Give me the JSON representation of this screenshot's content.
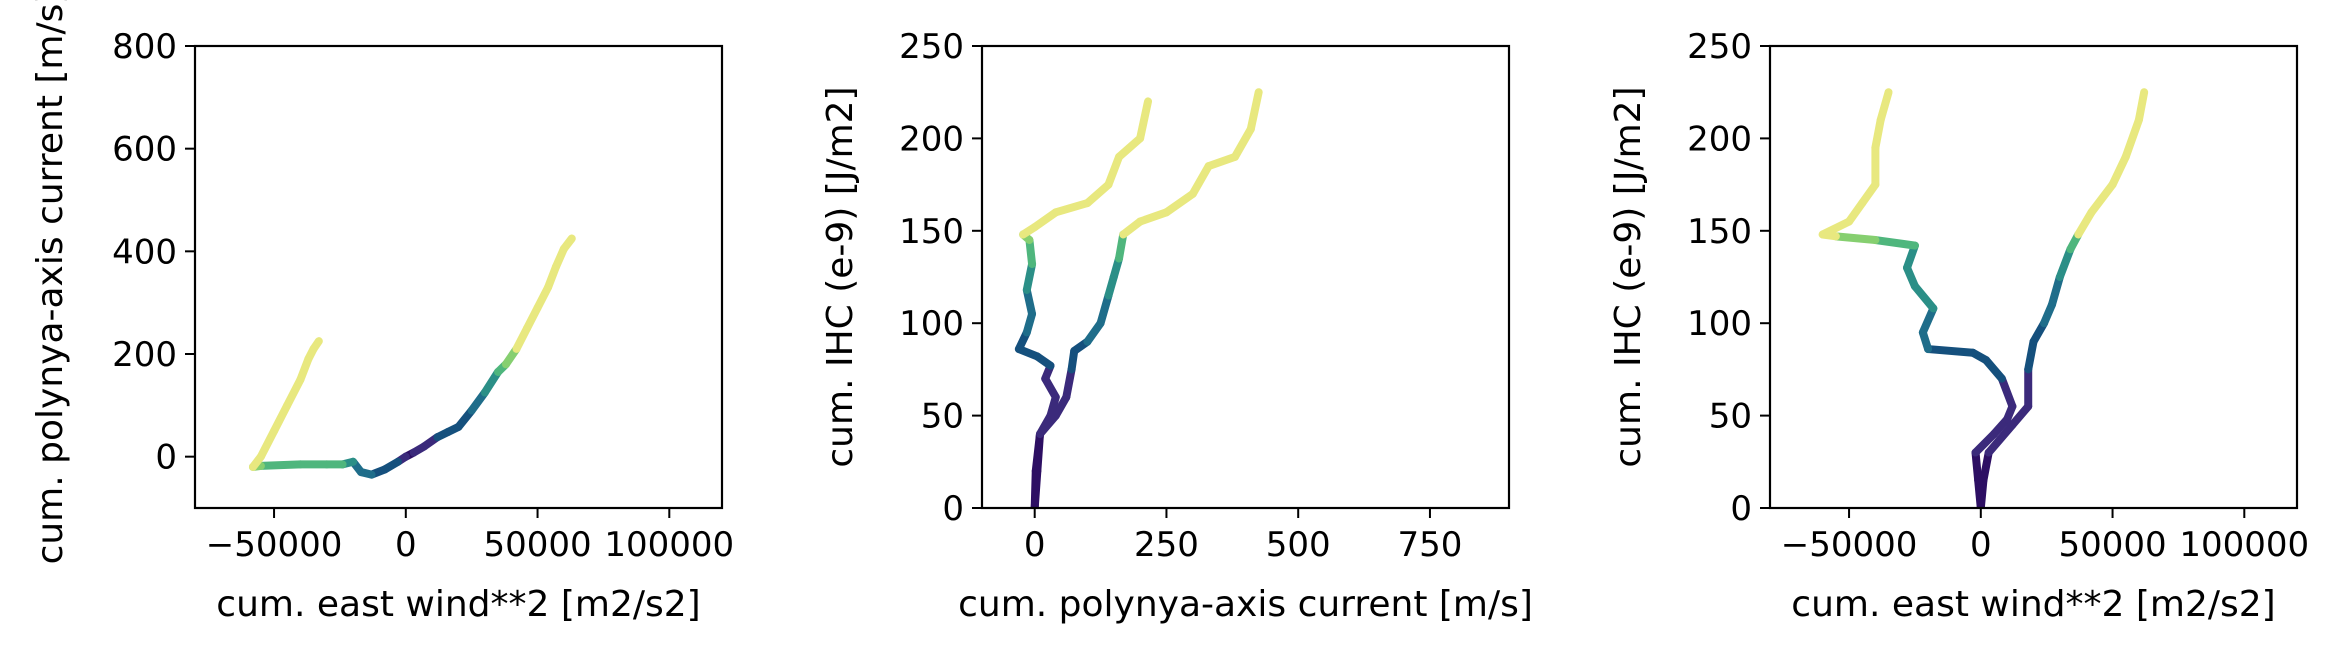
{
  "palette": [
    "#2d0f63",
    "#3b2a7b",
    "#15507d",
    "#1f6d8a",
    "#2b8f87",
    "#4fb67d",
    "#86cf70",
    "#e8e87f"
  ],
  "chart_data": [
    {
      "type": "line",
      "xlabel": "cum. east wind**2 [m2/s2]",
      "ylabel": "cum. polynya-axis current [m/s]",
      "xlim": [
        -80000,
        120000
      ],
      "ylim": [
        -100,
        800
      ],
      "xticks": [
        -50000,
        0,
        50000,
        100000
      ],
      "xtick_labels": [
        "−50000",
        "0",
        "50000",
        "100000"
      ],
      "yticks": [
        0,
        200,
        400,
        600,
        800
      ],
      "ytick_labels": [
        "0",
        "200",
        "400",
        "600",
        "800"
      ],
      "series": [
        {
          "points": [
            [
              0,
              0
            ],
            [
              3000,
              8
            ],
            [
              7000,
              20
            ],
            [
              12000,
              38
            ],
            [
              16000,
              48
            ],
            [
              20000,
              58
            ],
            [
              25000,
              90
            ],
            [
              30000,
              125
            ],
            [
              35000,
              165
            ],
            [
              38000,
              180
            ],
            [
              42000,
              210
            ],
            [
              46000,
              250
            ],
            [
              50000,
              290
            ],
            [
              54000,
              330
            ],
            [
              57000,
              370
            ],
            [
              60000,
              405
            ],
            [
              63000,
              425
            ]
          ],
          "color_index": [
            0,
            0,
            1,
            1,
            2,
            2,
            2,
            3,
            4,
            5,
            6,
            7,
            7,
            7,
            7,
            7,
            7
          ]
        },
        {
          "points": [
            [
              0,
              0
            ],
            [
              -3000,
              -10
            ],
            [
              -8000,
              -25
            ],
            [
              -13000,
              -35
            ],
            [
              -17000,
              -30
            ],
            [
              -20000,
              -10
            ],
            [
              -24000,
              -15
            ],
            [
              -30000,
              -15
            ],
            [
              -40000,
              -15
            ],
            [
              -55000,
              -18
            ],
            [
              -58000,
              -20
            ],
            [
              -55000,
              0
            ],
            [
              -50000,
              50
            ],
            [
              -45000,
              100
            ],
            [
              -40000,
              150
            ],
            [
              -37000,
              190
            ],
            [
              -35000,
              210
            ],
            [
              -33000,
              225
            ]
          ],
          "color_index": [
            0,
            1,
            2,
            2,
            3,
            3,
            4,
            5,
            5,
            5,
            6,
            7,
            7,
            7,
            7,
            7,
            7,
            7
          ]
        }
      ]
    },
    {
      "type": "line",
      "xlabel": "cum. polynya-axis current [m/s]",
      "ylabel": "cum. IHC (e-9) [J/m2]",
      "xlim": [
        -100,
        900
      ],
      "ylim": [
        0,
        250
      ],
      "xticks": [
        0,
        250,
        500,
        750
      ],
      "xtick_labels": [
        "0",
        "250",
        "500",
        "750"
      ],
      "yticks": [
        0,
        50,
        100,
        150,
        200,
        250
      ],
      "ytick_labels": [
        "0",
        "50",
        "100",
        "150",
        "200",
        "250"
      ],
      "series": [
        {
          "points": [
            [
              0,
              0
            ],
            [
              2,
              20
            ],
            [
              10,
              40
            ],
            [
              40,
              50
            ],
            [
              60,
              60
            ],
            [
              70,
              75
            ],
            [
              75,
              85
            ],
            [
              100,
              90
            ],
            [
              125,
              100
            ],
            [
              140,
              115
            ],
            [
              150,
              125
            ],
            [
              160,
              135
            ],
            [
              168,
              148
            ],
            [
              200,
              155
            ],
            [
              250,
              160
            ],
            [
              300,
              170
            ],
            [
              330,
              185
            ],
            [
              380,
              190
            ],
            [
              410,
              205
            ],
            [
              425,
              225
            ]
          ],
          "color_index": [
            0,
            0,
            0,
            1,
            1,
            1,
            2,
            2,
            3,
            3,
            4,
            4,
            5,
            7,
            7,
            7,
            7,
            7,
            7,
            7
          ]
        },
        {
          "points": [
            [
              0,
              0
            ],
            [
              5,
              20
            ],
            [
              10,
              40
            ],
            [
              30,
              50
            ],
            [
              40,
              60
            ],
            [
              20,
              70
            ],
            [
              30,
              77
            ],
            [
              5,
              82
            ],
            [
              -30,
              86
            ],
            [
              -15,
              95
            ],
            [
              -5,
              105
            ],
            [
              -15,
              118
            ],
            [
              -5,
              132
            ],
            [
              -10,
              145
            ],
            [
              -22,
              148
            ],
            [
              0,
              152
            ],
            [
              40,
              160
            ],
            [
              100,
              165
            ],
            [
              140,
              175
            ],
            [
              160,
              190
            ],
            [
              200,
              200
            ],
            [
              215,
              220
            ]
          ],
          "color_index": [
            0,
            0,
            0,
            1,
            1,
            1,
            1,
            2,
            2,
            2,
            3,
            3,
            4,
            5,
            6,
            7,
            7,
            7,
            7,
            7,
            7,
            7
          ]
        }
      ]
    },
    {
      "type": "line",
      "xlabel": "cum. east wind**2 [m2/s2]",
      "ylabel": "cum. IHC (e-9) [J/m2]",
      "xlim": [
        -80000,
        120000
      ],
      "ylim": [
        0,
        250
      ],
      "xticks": [
        -50000,
        0,
        50000,
        100000
      ],
      "xtick_labels": [
        "−50000",
        "0",
        "50000",
        "100000"
      ],
      "yticks": [
        0,
        50,
        100,
        150,
        200,
        250
      ],
      "ytick_labels": [
        "0",
        "50",
        "100",
        "150",
        "200",
        "250"
      ],
      "series": [
        {
          "points": [
            [
              0,
              0
            ],
            [
              1000,
              15
            ],
            [
              3000,
              30
            ],
            [
              12000,
              45
            ],
            [
              18000,
              55
            ],
            [
              18000,
              75
            ],
            [
              20000,
              90
            ],
            [
              24000,
              100
            ],
            [
              27000,
              110
            ],
            [
              30000,
              125
            ],
            [
              34000,
              140
            ],
            [
              37000,
              148
            ],
            [
              42000,
              160
            ],
            [
              50000,
              175
            ],
            [
              55000,
              190
            ],
            [
              60000,
              210
            ],
            [
              62000,
              225
            ]
          ],
          "color_index": [
            0,
            0,
            0,
            1,
            1,
            1,
            2,
            2,
            3,
            3,
            4,
            5,
            7,
            7,
            7,
            7,
            7
          ]
        },
        {
          "points": [
            [
              0,
              0
            ],
            [
              -1000,
              15
            ],
            [
              -2000,
              30
            ],
            [
              5000,
              40
            ],
            [
              10000,
              48
            ],
            [
              12000,
              55
            ],
            [
              8000,
              70
            ],
            [
              2000,
              80
            ],
            [
              -3000,
              84
            ],
            [
              -20000,
              86
            ],
            [
              -22000,
              95
            ],
            [
              -18000,
              108
            ],
            [
              -25000,
              120
            ],
            [
              -28000,
              130
            ],
            [
              -25000,
              142
            ],
            [
              -40000,
              145
            ],
            [
              -55000,
              147
            ],
            [
              -60000,
              148
            ],
            [
              -50000,
              155
            ],
            [
              -45000,
              165
            ],
            [
              -40000,
              175
            ],
            [
              -40000,
              195
            ],
            [
              -38000,
              210
            ],
            [
              -35000,
              225
            ]
          ],
          "color_index": [
            0,
            0,
            0,
            1,
            1,
            1,
            1,
            2,
            2,
            2,
            3,
            3,
            4,
            4,
            4,
            5,
            6,
            7,
            7,
            7,
            7,
            7,
            7,
            7
          ]
        }
      ]
    }
  ]
}
